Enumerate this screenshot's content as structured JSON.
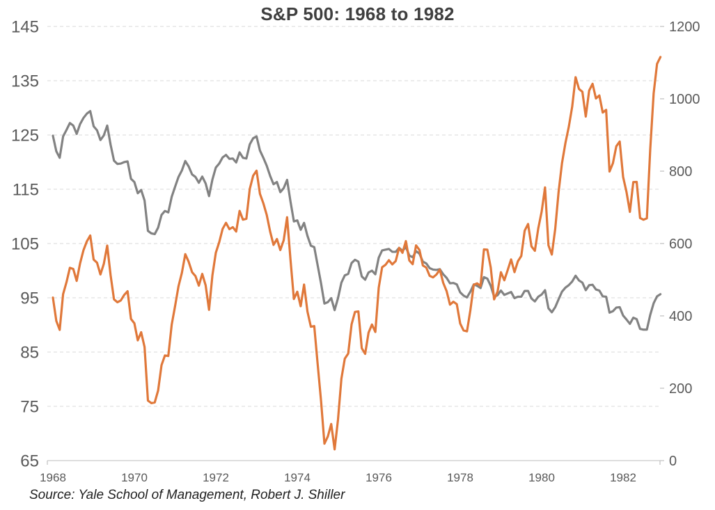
{
  "page": {
    "title": "S&P 500: 1968 to 1982",
    "source_note": "Source:  Yale School of Management, Robert J. Shiller"
  },
  "chart_data": {
    "type": "line",
    "title": "S&P 500: 1968 to 1982",
    "source_note": "Source:  Yale School of Management, Robert J. Shiller",
    "frequency": "monthly",
    "x_start": "1968-01",
    "x_end": "1982-12",
    "x_tick_labels": [
      "1968",
      "1970",
      "1972",
      "1974",
      "1976",
      "1978",
      "1980",
      "1982"
    ],
    "left_axis": {
      "range": [
        65,
        145
      ],
      "ticks": [
        145,
        135,
        125,
        115,
        105,
        95,
        85,
        75,
        65
      ]
    },
    "right_axis": {
      "range": [
        0,
        1200
      ],
      "ticks": [
        1200,
        1000,
        800,
        600,
        400,
        200,
        0
      ]
    },
    "grid": "horizontal-dashed",
    "legend": "none",
    "colors": {
      "orange": "#E0783A",
      "gray": "#828282"
    },
    "series": [
      {
        "name": "gray line (right axis)",
        "axis": "right",
        "color": "#828282",
        "values": [
          898,
          855,
          837,
          896,
          914,
          933,
          926,
          903,
          930,
          947,
          959,
          966,
          924,
          913,
          886,
          899,
          926,
          873,
          829,
          820,
          821,
          825,
          827,
          779,
          770,
          739,
          748,
          719,
          635,
          628,
          626,
          644,
          679,
          690,
          686,
          729,
          757,
          784,
          802,
          828,
          813,
          791,
          784,
          768,
          785,
          766,
          731,
          777,
          810,
          821,
          838,
          845,
          834,
          835,
          824,
          852,
          837,
          835,
          874,
          891,
          896,
          857,
          837,
          815,
          787,
          764,
          770,
          742,
          753,
          776,
          716,
          661,
          664,
          638,
          657,
          621,
          594,
          590,
          540,
          490,
          434,
          438,
          449,
          416,
          449,
          492,
          512,
          516,
          546,
          555,
          550,
          509,
          500,
          520,
          525,
          515,
          561,
          581,
          583,
          585,
          577,
          577,
          588,
          580,
          590,
          567,
          562,
          579,
          572,
          550,
          545,
          532,
          528,
          527,
          529,
          515,
          505,
          490,
          491,
          487,
          465,
          456,
          451,
          467,
          487,
          483,
          477,
          507,
          503,
          483,
          453,
          457,
          470,
          458,
          462,
          466,
          449,
          453,
          453,
          469,
          469,
          448,
          440,
          453,
          459,
          471,
          421,
          410,
          424,
          446,
          467,
          478,
          485,
          495,
          511,
          498,
          492,
          471,
          485,
          486,
          473,
          470,
          454,
          453,
          409,
          413,
          423,
          424,
          401,
          390,
          378,
          395,
          391,
          364,
          362,
          362,
          403,
          435,
          454,
          460
        ]
      },
      {
        "name": "orange line (left axis)",
        "axis": "left",
        "color": "#E0783A",
        "values": [
          95.04,
          90.75,
          89.09,
          95.67,
          97.87,
          100.53,
          100.3,
          98.11,
          101.34,
          103.76,
          105.4,
          106.48,
          102.04,
          101.46,
          99.3,
          101.26,
          104.62,
          99.14,
          94.71,
          94.18,
          94.51,
          95.52,
          96.21,
          91.11,
          90.31,
          87.16,
          88.65,
          85.95,
          76.06,
          75.59,
          75.72,
          77.92,
          82.58,
          84.37,
          84.28,
          90.05,
          93.49,
          97.11,
          99.6,
          103.04,
          101.64,
          99.72,
          99.0,
          97.24,
          99.4,
          97.29,
          92.78,
          99.17,
          103.3,
          105.24,
          107.69,
          108.81,
          107.65,
          108.01,
          107.21,
          111.01,
          109.39,
          109.56,
          115.05,
          117.5,
          118.42,
          114.16,
          112.42,
          110.27,
          107.22,
          104.75,
          105.83,
          103.8,
          105.61,
          109.84,
          102.03,
          94.78,
          96.11,
          93.45,
          97.44,
          92.46,
          89.67,
          89.79,
          82.82,
          76.03,
          68.12,
          69.44,
          71.74,
          67.07,
          72.56,
          80.1,
          83.78,
          84.72,
          90.1,
          92.4,
          92.49,
          85.71,
          84.67,
          88.57,
          90.07,
          88.7,
          96.86,
          100.64,
          101.08,
          101.93,
          101.16,
          101.77,
          104.2,
          103.29,
          105.45,
          101.89,
          101.19,
          104.66,
          103.81,
          100.96,
          100.57,
          99.05,
          98.76,
          99.29,
          100.18,
          97.75,
          96.23,
          93.74,
          94.28,
          93.82,
          90.25,
          88.98,
          88.82,
          92.71,
          97.41,
          97.66,
          97.19,
          103.92,
          103.86,
          100.58,
          94.71,
          96.11,
          99.71,
          98.23,
          100.11,
          102.07,
          99.73,
          101.73,
          102.71,
          107.36,
          108.6,
          104.47,
          103.66,
          107.78,
          110.87,
          115.34,
          104.69,
          102.97,
          107.69,
          114.55,
          119.83,
          123.5,
          126.51,
          130.22,
          135.65,
          133.48,
          132.97,
          128.4,
          133.19,
          134.43,
          131.73,
          132.28,
          129.13,
          129.63,
          118.27,
          119.8,
          122.92,
          123.79,
          117.28,
          114.5,
          110.84,
          116.31,
          116.35,
          109.7,
          109.38,
          109.65,
          122.43,
          132.66,
          138.1,
          139.37
        ]
      }
    ]
  }
}
